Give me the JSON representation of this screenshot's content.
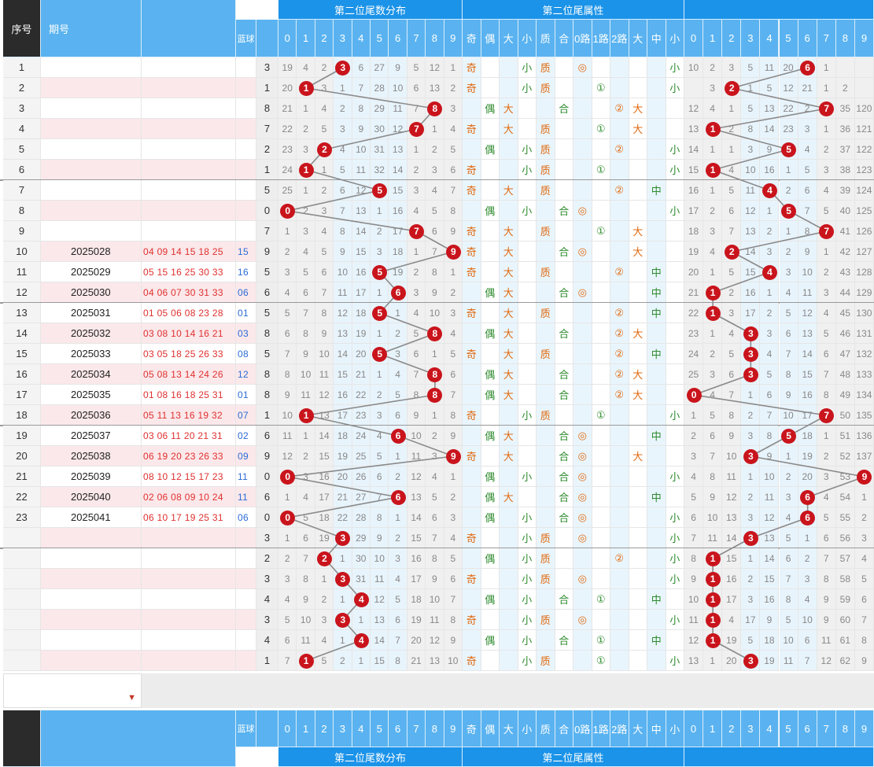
{
  "header": {
    "col_seq": "序号",
    "col_period": "期号",
    "col_blue": "蓝球",
    "group_dist": "第二位尾数分布",
    "group_attr": "第二位尾属性",
    "digits": [
      "0",
      "1",
      "2",
      "3",
      "4",
      "5",
      "6",
      "7",
      "8",
      "9"
    ],
    "attrs": [
      "奇",
      "偶",
      "大",
      "小",
      "质",
      "合",
      "0路",
      "1路",
      "2路",
      "大",
      "中",
      "小"
    ],
    "right_digits": [
      "0",
      "1",
      "2",
      "3",
      "4",
      "5",
      "6",
      "7",
      "8",
      "9"
    ]
  },
  "rows": [
    {
      "seq": "1",
      "period": "",
      "nums": "",
      "blue": "",
      "val": "3",
      "d": [
        "19",
        "4",
        "2",
        "3",
        "6",
        "27",
        "9",
        "5",
        "12",
        "1"
      ],
      "ball": 3,
      "a": [
        "奇",
        "",
        "",
        "小",
        "质",
        "",
        "◎",
        "",
        "",
        "",
        "",
        "小"
      ],
      "r": [
        "10",
        "2",
        "3",
        "5",
        "11",
        "20",
        "6",
        "1",
        "",
        ""
      ],
      "rb": 6
    },
    {
      "seq": "2",
      "period": "",
      "nums": "",
      "blue": "",
      "val": "1",
      "d": [
        "20",
        "1",
        "3",
        "1",
        "7",
        "28",
        "10",
        "6",
        "13",
        "2"
      ],
      "ball": 1,
      "a": [
        "奇",
        "",
        "",
        "小",
        "质",
        "",
        "",
        "①",
        "",
        "",
        "",
        "小"
      ],
      "r": [
        "",
        "3",
        "2",
        "1",
        "5",
        "12",
        "21",
        "1",
        "2",
        ""
      ],
      "rb": 2
    },
    {
      "seq": "3",
      "period": "",
      "nums": "",
      "blue": "",
      "val": "8",
      "d": [
        "21",
        "1",
        "4",
        "2",
        "8",
        "29",
        "11",
        "7",
        "8",
        "3"
      ],
      "ball": 8,
      "a": [
        "",
        "偶",
        "大",
        "",
        "",
        "合",
        "",
        "",
        "②",
        "大",
        "",
        ""
      ],
      "r": [
        "12",
        "4",
        "1",
        "5",
        "13",
        "22",
        "2",
        "7",
        "35",
        "120"
      ],
      "rb": 7
    },
    {
      "seq": "4",
      "period": "",
      "nums": "",
      "blue": "",
      "val": "7",
      "d": [
        "22",
        "2",
        "5",
        "3",
        "9",
        "30",
        "12",
        "7",
        "1",
        "4"
      ],
      "ball": 7,
      "a": [
        "奇",
        "",
        "大",
        "",
        "质",
        "",
        "",
        "①",
        "",
        "大",
        "",
        ""
      ],
      "r": [
        "13",
        "1",
        "2",
        "8",
        "14",
        "23",
        "3",
        "1",
        "36",
        "121"
      ],
      "rb": 1
    },
    {
      "seq": "5",
      "period": "",
      "nums": "",
      "blue": "",
      "val": "2",
      "d": [
        "23",
        "3",
        "2",
        "4",
        "10",
        "31",
        "13",
        "1",
        "2",
        "5"
      ],
      "ball": 2,
      "a": [
        "",
        "偶",
        "",
        "小",
        "质",
        "",
        "",
        "",
        "②",
        "",
        "",
        "小"
      ],
      "r": [
        "14",
        "1",
        "1",
        "3",
        "9",
        "5",
        "4",
        "2",
        "37",
        "122"
      ],
      "rb": 5
    },
    {
      "seq": "6",
      "period": "",
      "nums": "",
      "blue": "",
      "val": "1",
      "d": [
        "24",
        "1",
        "1",
        "5",
        "11",
        "32",
        "14",
        "2",
        "3",
        "6"
      ],
      "ball": 1,
      "a": [
        "奇",
        "",
        "",
        "小",
        "质",
        "",
        "",
        "①",
        "",
        "",
        "",
        "小"
      ],
      "r": [
        "15",
        "1",
        "4",
        "10",
        "16",
        "1",
        "5",
        "3",
        "38",
        "123"
      ],
      "rb": 1
    },
    {
      "seq": "7",
      "period": "",
      "nums": "",
      "blue": "",
      "val": "5",
      "d": [
        "25",
        "1",
        "2",
        "6",
        "12",
        "5",
        "15",
        "3",
        "4",
        "7"
      ],
      "ball": 5,
      "a": [
        "奇",
        "",
        "大",
        "",
        "质",
        "",
        "",
        "",
        "②",
        "",
        "中",
        ""
      ],
      "r": [
        "16",
        "1",
        "5",
        "11",
        "4",
        "2",
        "6",
        "4",
        "39",
        "124"
      ],
      "rb": 4
    },
    {
      "seq": "8",
      "period": "",
      "nums": "",
      "blue": "",
      "val": "0",
      "d": [
        "0",
        "2",
        "3",
        "7",
        "13",
        "1",
        "16",
        "4",
        "5",
        "8"
      ],
      "ball": 0,
      "a": [
        "",
        "偶",
        "",
        "小",
        "",
        "合",
        "◎",
        "",
        "",
        "",
        "",
        "小"
      ],
      "r": [
        "17",
        "2",
        "6",
        "12",
        "1",
        "5",
        "7",
        "5",
        "40",
        "125"
      ],
      "rb": 5
    },
    {
      "seq": "9",
      "period": "",
      "nums": "",
      "blue": "",
      "val": "7",
      "d": [
        "1",
        "3",
        "4",
        "8",
        "14",
        "2",
        "17",
        "7",
        "6",
        "9"
      ],
      "ball": 7,
      "a": [
        "奇",
        "",
        "大",
        "",
        "质",
        "",
        "",
        "①",
        "",
        "大",
        "",
        ""
      ],
      "r": [
        "18",
        "3",
        "7",
        "13",
        "2",
        "1",
        "8",
        "7",
        "41",
        "126"
      ],
      "rb": 7
    },
    {
      "seq": "10",
      "period": "2025028",
      "nums": "04 09 14 15 18 25",
      "blue": "15",
      "val": "9",
      "d": [
        "2",
        "4",
        "5",
        "9",
        "15",
        "3",
        "18",
        "1",
        "7",
        "9"
      ],
      "ball": 9,
      "a": [
        "奇",
        "",
        "大",
        "",
        "",
        "合",
        "◎",
        "",
        "",
        "大",
        "",
        ""
      ],
      "r": [
        "19",
        "4",
        "2",
        "14",
        "3",
        "2",
        "9",
        "1",
        "42",
        "127"
      ],
      "rb": 2
    },
    {
      "seq": "11",
      "period": "2025029",
      "nums": "05 15 16 25 30 33",
      "blue": "16",
      "val": "5",
      "d": [
        "3",
        "5",
        "6",
        "10",
        "16",
        "5",
        "19",
        "2",
        "8",
        "1"
      ],
      "ball": 5,
      "a": [
        "奇",
        "",
        "大",
        "",
        "质",
        "",
        "",
        "",
        "②",
        "",
        "中",
        ""
      ],
      "r": [
        "20",
        "1",
        "5",
        "15",
        "4",
        "3",
        "10",
        "2",
        "43",
        "128"
      ],
      "rb": 4
    },
    {
      "seq": "12",
      "period": "2025030",
      "nums": "04 06 07 30 31 33",
      "blue": "06",
      "val": "6",
      "d": [
        "4",
        "6",
        "7",
        "11",
        "17",
        "1",
        "6",
        "3",
        "9",
        "2"
      ],
      "ball": 6,
      "a": [
        "",
        "偶",
        "大",
        "",
        "",
        "合",
        "◎",
        "",
        "",
        "",
        "中",
        ""
      ],
      "r": [
        "21",
        "1",
        "2",
        "16",
        "1",
        "4",
        "11",
        "3",
        "44",
        "129"
      ],
      "rb": 1
    },
    {
      "seq": "13",
      "period": "2025031",
      "nums": "01 05 06 08 23 28",
      "blue": "01",
      "val": "5",
      "d": [
        "5",
        "7",
        "8",
        "12",
        "18",
        "5",
        "1",
        "4",
        "10",
        "3"
      ],
      "ball": 5,
      "a": [
        "奇",
        "",
        "大",
        "",
        "质",
        "",
        "",
        "",
        "②",
        "",
        "中",
        ""
      ],
      "r": [
        "22",
        "1",
        "3",
        "17",
        "2",
        "5",
        "12",
        "4",
        "45",
        "130"
      ],
      "rb": 1
    },
    {
      "seq": "14",
      "period": "2025032",
      "nums": "03 08 10 14 16 21",
      "blue": "03",
      "val": "8",
      "d": [
        "6",
        "8",
        "9",
        "13",
        "19",
        "1",
        "2",
        "5",
        "8",
        "4"
      ],
      "ball": 8,
      "a": [
        "",
        "偶",
        "大",
        "",
        "",
        "合",
        "",
        "",
        "②",
        "大",
        "",
        ""
      ],
      "r": [
        "23",
        "1",
        "4",
        "3",
        "3",
        "6",
        "13",
        "5",
        "46",
        "131"
      ],
      "rb": 3
    },
    {
      "seq": "15",
      "period": "2025033",
      "nums": "03 05 18 25 26 33",
      "blue": "08",
      "val": "5",
      "d": [
        "7",
        "9",
        "10",
        "14",
        "20",
        "5",
        "3",
        "6",
        "1",
        "5"
      ],
      "ball": 5,
      "a": [
        "奇",
        "",
        "大",
        "",
        "质",
        "",
        "",
        "",
        "②",
        "",
        "中",
        ""
      ],
      "r": [
        "24",
        "2",
        "5",
        "3",
        "4",
        "7",
        "14",
        "6",
        "47",
        "132"
      ],
      "rb": 3
    },
    {
      "seq": "16",
      "period": "2025034",
      "nums": "05 08 13 14 24 26",
      "blue": "12",
      "val": "8",
      "d": [
        "8",
        "10",
        "11",
        "15",
        "21",
        "1",
        "4",
        "7",
        "8",
        "6"
      ],
      "ball": 8,
      "a": [
        "",
        "偶",
        "大",
        "",
        "",
        "合",
        "",
        "",
        "②",
        "大",
        "",
        ""
      ],
      "r": [
        "25",
        "3",
        "6",
        "3",
        "5",
        "8",
        "15",
        "7",
        "48",
        "133"
      ],
      "rb": 3
    },
    {
      "seq": "17",
      "period": "2025035",
      "nums": "01 08 16 18 25 31",
      "blue": "01",
      "val": "8",
      "d": [
        "9",
        "11",
        "12",
        "16",
        "22",
        "2",
        "5",
        "8",
        "8",
        "7"
      ],
      "ball": 8,
      "a": [
        "",
        "偶",
        "大",
        "",
        "",
        "合",
        "",
        "",
        "②",
        "大",
        "",
        ""
      ],
      "r": [
        "0",
        "4",
        "7",
        "1",
        "6",
        "9",
        "16",
        "8",
        "49",
        "134"
      ],
      "rb": 0
    },
    {
      "seq": "18",
      "period": "2025036",
      "nums": "05 11 13 16 19 32",
      "blue": "07",
      "val": "1",
      "d": [
        "10",
        "1",
        "13",
        "17",
        "23",
        "3",
        "6",
        "9",
        "1",
        "8"
      ],
      "ball": 1,
      "a": [
        "奇",
        "",
        "",
        "小",
        "质",
        "",
        "",
        "①",
        "",
        "",
        "",
        "小"
      ],
      "r": [
        "1",
        "5",
        "8",
        "2",
        "7",
        "10",
        "17",
        "7",
        "50",
        "135"
      ],
      "rb": 7
    },
    {
      "seq": "19",
      "period": "2025037",
      "nums": "03 06 11 20 21 31",
      "blue": "02",
      "val": "6",
      "d": [
        "11",
        "1",
        "14",
        "18",
        "24",
        "4",
        "6",
        "10",
        "2",
        "9"
      ],
      "ball": 6,
      "a": [
        "",
        "偶",
        "大",
        "",
        "",
        "合",
        "◎",
        "",
        "",
        "",
        "中",
        ""
      ],
      "r": [
        "2",
        "6",
        "9",
        "3",
        "8",
        "5",
        "18",
        "1",
        "51",
        "136"
      ],
      "rb": 5
    },
    {
      "seq": "20",
      "period": "2025038",
      "nums": "06 19 20 23 26 33",
      "blue": "09",
      "val": "9",
      "d": [
        "12",
        "2",
        "15",
        "19",
        "25",
        "5",
        "1",
        "11",
        "3",
        "9"
      ],
      "ball": 9,
      "a": [
        "奇",
        "",
        "大",
        "",
        "",
        "合",
        "◎",
        "",
        "",
        "大",
        "",
        ""
      ],
      "r": [
        "3",
        "7",
        "10",
        "3",
        "9",
        "1",
        "19",
        "2",
        "52",
        "137"
      ],
      "rb": 3
    },
    {
      "seq": "21",
      "period": "2025039",
      "nums": "08 10 12 15 17 23",
      "blue": "11",
      "val": "0",
      "d": [
        "0",
        "3",
        "16",
        "20",
        "26",
        "6",
        "2",
        "12",
        "4",
        "1"
      ],
      "ball": 0,
      "a": [
        "",
        "偶",
        "",
        "小",
        "",
        "合",
        "◎",
        "",
        "",
        "",
        "",
        "小"
      ],
      "r": [
        "4",
        "8",
        "11",
        "1",
        "10",
        "2",
        "20",
        "3",
        "53",
        "9"
      ],
      "rb": 9
    },
    {
      "seq": "22",
      "period": "2025040",
      "nums": "02 06 08 09 10 24",
      "blue": "11",
      "val": "6",
      "d": [
        "1",
        "4",
        "17",
        "21",
        "27",
        "7",
        "6",
        "13",
        "5",
        "2"
      ],
      "ball": 6,
      "a": [
        "",
        "偶",
        "大",
        "",
        "",
        "合",
        "◎",
        "",
        "",
        "",
        "中",
        ""
      ],
      "r": [
        "5",
        "9",
        "12",
        "2",
        "11",
        "3",
        "6",
        "4",
        "54",
        "1"
      ],
      "rb": 6
    },
    {
      "seq": "23",
      "period": "2025041",
      "nums": "06 10 17 19 25 31",
      "blue": "06",
      "val": "0",
      "d": [
        "0",
        "5",
        "18",
        "22",
        "28",
        "8",
        "1",
        "14",
        "6",
        "3"
      ],
      "ball": 0,
      "a": [
        "",
        "偶",
        "",
        "小",
        "",
        "合",
        "◎",
        "",
        "",
        "",
        "",
        "小"
      ],
      "r": [
        "6",
        "10",
        "13",
        "3",
        "12",
        "4",
        "6",
        "5",
        "55",
        "2"
      ],
      "rb": 6
    },
    {
      "seq": "",
      "period": "",
      "nums": "",
      "blue": "",
      "val": "3",
      "d": [
        "1",
        "6",
        "19",
        "3",
        "29",
        "9",
        "2",
        "15",
        "7",
        "4"
      ],
      "ball": 3,
      "a": [
        "奇",
        "",
        "",
        "小",
        "质",
        "",
        "◎",
        "",
        "",
        "",
        "",
        "小"
      ],
      "r": [
        "7",
        "11",
        "14",
        "3",
        "13",
        "5",
        "1",
        "6",
        "56",
        "3"
      ],
      "rb": 3
    },
    {
      "seq": "",
      "period": "",
      "nums": "",
      "blue": "",
      "val": "2",
      "d": [
        "2",
        "7",
        "2",
        "1",
        "30",
        "10",
        "3",
        "16",
        "8",
        "5"
      ],
      "ball": 2,
      "a": [
        "",
        "偶",
        "",
        "小",
        "质",
        "",
        "",
        "",
        "②",
        "",
        "",
        "小"
      ],
      "r": [
        "8",
        "1",
        "15",
        "1",
        "14",
        "6",
        "2",
        "7",
        "57",
        "4"
      ],
      "rb": 1
    },
    {
      "seq": "",
      "period": "",
      "nums": "",
      "blue": "",
      "val": "3",
      "d": [
        "3",
        "8",
        "1",
        "3",
        "31",
        "11",
        "4",
        "17",
        "9",
        "6"
      ],
      "ball": 3,
      "a": [
        "奇",
        "",
        "",
        "小",
        "质",
        "",
        "◎",
        "",
        "",
        "",
        "",
        "小"
      ],
      "r": [
        "9",
        "1",
        "16",
        "2",
        "15",
        "7",
        "3",
        "8",
        "58",
        "5"
      ],
      "rb": 1
    },
    {
      "seq": "",
      "period": "",
      "nums": "",
      "blue": "",
      "val": "4",
      "d": [
        "4",
        "9",
        "2",
        "1",
        "4",
        "12",
        "5",
        "18",
        "10",
        "7"
      ],
      "ball": 4,
      "a": [
        "",
        "偶",
        "",
        "小",
        "",
        "合",
        "",
        "①",
        "",
        "",
        "中",
        ""
      ],
      "r": [
        "10",
        "1",
        "17",
        "3",
        "16",
        "8",
        "4",
        "9",
        "59",
        "6"
      ],
      "rb": 1
    },
    {
      "seq": "",
      "period": "",
      "nums": "",
      "blue": "",
      "val": "3",
      "d": [
        "5",
        "10",
        "3",
        "3",
        "1",
        "13",
        "6",
        "19",
        "11",
        "8"
      ],
      "ball": 3,
      "a": [
        "奇",
        "",
        "",
        "小",
        "质",
        "",
        "◎",
        "",
        "",
        "",
        "",
        "小"
      ],
      "r": [
        "11",
        "1",
        "4",
        "17",
        "9",
        "5",
        "10",
        "9",
        "60",
        "7"
      ],
      "rb": 1
    },
    {
      "seq": "",
      "period": "",
      "nums": "",
      "blue": "",
      "val": "4",
      "d": [
        "6",
        "11",
        "4",
        "1",
        "4",
        "14",
        "7",
        "20",
        "12",
        "9"
      ],
      "ball": 4,
      "a": [
        "",
        "偶",
        "",
        "小",
        "",
        "合",
        "",
        "①",
        "",
        "",
        "中",
        ""
      ],
      "r": [
        "12",
        "1",
        "19",
        "5",
        "18",
        "10",
        "6",
        "11",
        "61",
        "8"
      ],
      "rb": 1
    },
    {
      "seq": "",
      "period": "",
      "nums": "",
      "blue": "",
      "val": "1",
      "d": [
        "7",
        "1",
        "5",
        "2",
        "1",
        "15",
        "8",
        "21",
        "13",
        "10"
      ],
      "ball": 1,
      "a": [
        "奇",
        "",
        "",
        "小",
        "质",
        "",
        "",
        "①",
        "",
        "",
        "",
        "小"
      ],
      "r": [
        "13",
        "1",
        "20",
        "3",
        "19",
        "11",
        "7",
        "12",
        "62",
        "9"
      ],
      "rb": 3
    }
  ],
  "colors": {
    "header_blue": "#1b93e8",
    "sub_blue": "#5ab3f0",
    "ball_red": "#c9141c",
    "line_gray": "#8a8a8a"
  }
}
